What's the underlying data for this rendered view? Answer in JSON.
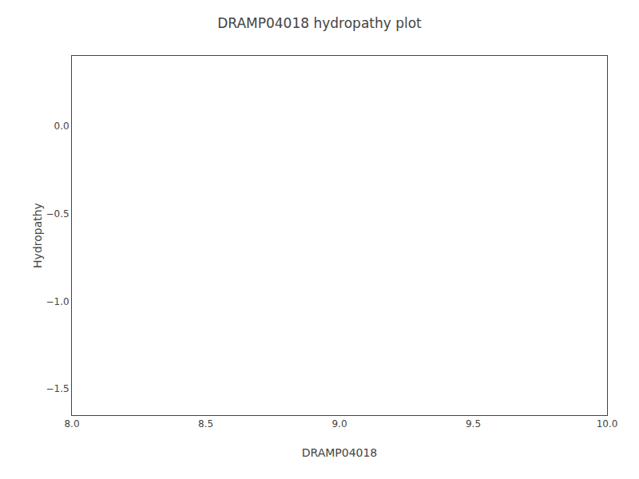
{
  "chart_data": {
    "type": "line",
    "title": "DRAMP04018 hydropathy plot",
    "xlabel": "DRAMP04018",
    "ylabel": "Hydropathy",
    "xlim": [
      8.0,
      10.0
    ],
    "ylim": [
      -1.65,
      0.4
    ],
    "xticks": [
      {
        "value": 8.0,
        "label": "8.0"
      },
      8.5,
      {
        "value": 9.0,
        "label": "9.0"
      },
      9.5,
      {
        "value": 10.0,
        "label": "10.0"
      }
    ],
    "yticks": [
      {
        "value": 0.0,
        "label": "0.0"
      },
      {
        "value": -0.5,
        "label": "−0.5"
      },
      {
        "value": -1.0,
        "label": "−1.0"
      },
      {
        "value": -1.5,
        "label": "−1.5"
      }
    ],
    "grid": false
  }
}
